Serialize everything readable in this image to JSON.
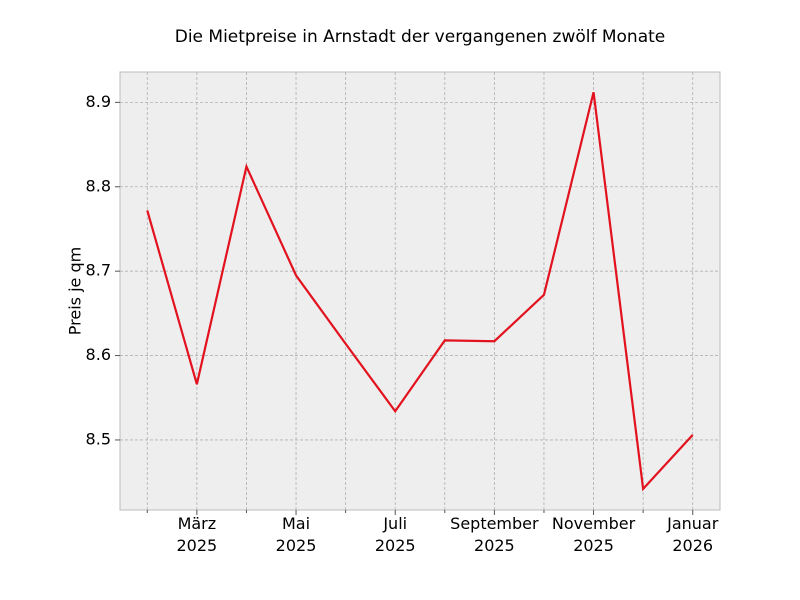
{
  "chart_data": {
    "type": "line",
    "title": "Die Mietpreise in Arnstadt der vergangenen zwölf Monate",
    "y_label": "Preis je qm",
    "x": [
      "2025-02",
      "2025-03",
      "2025-04",
      "2025-05",
      "2025-06",
      "2025-07",
      "2025-08",
      "2025-09",
      "2025-10",
      "2025-11",
      "2025-12",
      "2026-01"
    ],
    "series": [
      {
        "name": "Preis je qm",
        "color": "#e2121f",
        "values": [
          8.772,
          8.566,
          8.824,
          8.695,
          8.614,
          8.534,
          8.618,
          8.617,
          8.672,
          8.912,
          8.442,
          8.506
        ]
      }
    ],
    "xticks": [
      {
        "value": "2025-03",
        "label": "März 2025"
      },
      {
        "value": "2025-05",
        "label": "Mai 2025"
      },
      {
        "value": "2025-07",
        "label": "Juli 2025"
      },
      {
        "value": "2025-09",
        "label": "September 2025"
      },
      {
        "value": "2025-11",
        "label": "November 2025"
      },
      {
        "value": "2026-01",
        "label": "Januar 2026"
      }
    ],
    "minor_xticks": [
      "2025-02",
      "2025-04",
      "2025-06",
      "2025-08",
      "2025-10",
      "2025-12"
    ],
    "ylim": [
      8.417,
      8.936
    ],
    "yticks": [
      8.5,
      8.6,
      8.7,
      8.8,
      8.9
    ],
    "grid": true
  }
}
